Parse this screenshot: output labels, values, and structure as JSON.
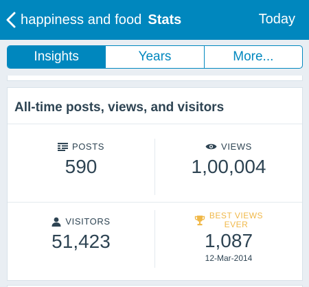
{
  "header": {
    "blog_name": "happiness and food",
    "title": "Stats",
    "period": "Today",
    "back_icon": "chevron-left-icon"
  },
  "tabs": [
    {
      "label": "Insights",
      "active": true
    },
    {
      "label": "Years",
      "active": false
    },
    {
      "label": "More...",
      "active": false
    }
  ],
  "card": {
    "title": "All-time posts, views, and visitors",
    "posts": {
      "label": "POSTS",
      "value": "590",
      "icon": "posts-icon"
    },
    "views": {
      "label": "VIEWS",
      "value": "1,00,004",
      "icon": "eye-icon"
    },
    "visitors": {
      "label": "VISITORS",
      "value": "51,423",
      "icon": "person-icon"
    },
    "best": {
      "label_line1": "BEST VIEWS",
      "label_line2": "EVER",
      "value": "1,087",
      "date": "12-Mar-2014",
      "icon": "trophy-icon"
    }
  },
  "colors": {
    "accent": "#0087be",
    "text": "#2e4453",
    "trophy": "#f0b849",
    "background": "#e9eef3"
  }
}
